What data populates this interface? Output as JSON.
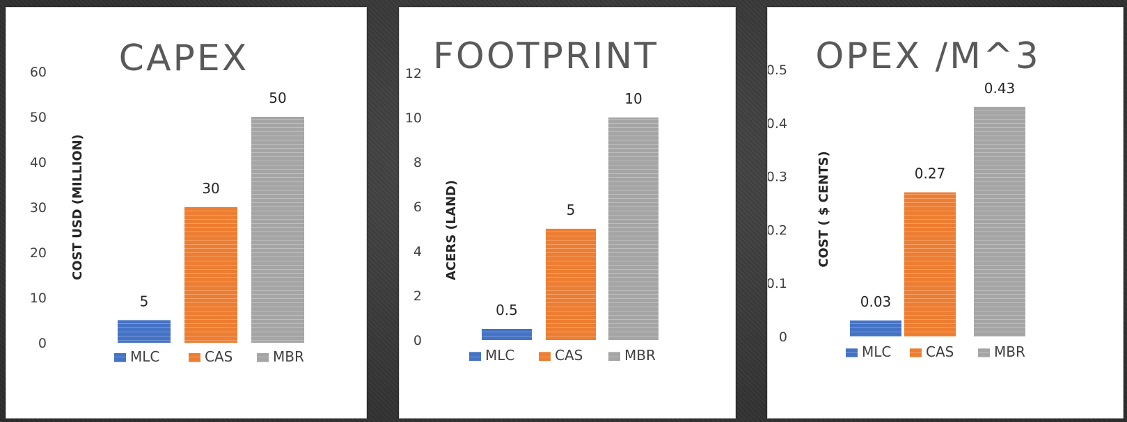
{
  "chart_data": [
    {
      "type": "bar",
      "title": "CAPEX",
      "ylabel": "COST USD (MILLION)",
      "xlabel": "",
      "categories": [
        "MLC",
        "CAS",
        "MBR"
      ],
      "values": [
        5,
        30,
        50
      ],
      "value_labels": [
        "5",
        "30",
        "50"
      ],
      "ylim": [
        0,
        60
      ],
      "yticks": [
        "0",
        "10",
        "20",
        "30",
        "40",
        "50",
        "60"
      ],
      "colors": [
        "#4472c4",
        "#ed7d31",
        "#a5a5a5"
      ],
      "legend": [
        "MLC",
        "CAS",
        "MBR"
      ],
      "legend_position": "bottom",
      "grid": false
    },
    {
      "type": "bar",
      "title": "FOOTPRINT",
      "ylabel": "ACERS (LAND)",
      "xlabel": "",
      "categories": [
        "MLC",
        "CAS",
        "MBR"
      ],
      "values": [
        0.5,
        5,
        10
      ],
      "value_labels": [
        "0.5",
        "5",
        "10"
      ],
      "ylim": [
        0,
        12
      ],
      "yticks": [
        "0",
        "2",
        "4",
        "6",
        "8",
        "10",
        "12"
      ],
      "colors": [
        "#4472c4",
        "#ed7d31",
        "#a5a5a5"
      ],
      "legend": [
        "MLC",
        "CAS",
        "MBR"
      ],
      "legend_position": "bottom",
      "grid": false
    },
    {
      "type": "bar",
      "title": "OPEX /M^3",
      "ylabel": "COST ( $ CENTS)",
      "xlabel": "",
      "categories": [
        "MLC",
        "CAS",
        "MBR"
      ],
      "values": [
        0.03,
        0.27,
        0.43
      ],
      "value_labels": [
        "0.03",
        "0.27",
        "0.43"
      ],
      "ylim": [
        0,
        0.5
      ],
      "yticks": [
        "0",
        "0.1",
        "0.2",
        "0.3",
        "0.4",
        "0.5"
      ],
      "colors": [
        "#4472c4",
        "#ed7d31",
        "#a5a5a5"
      ],
      "legend": [
        "MLC",
        "CAS",
        "MBR"
      ],
      "legend_position": "bottom",
      "grid": false
    }
  ]
}
